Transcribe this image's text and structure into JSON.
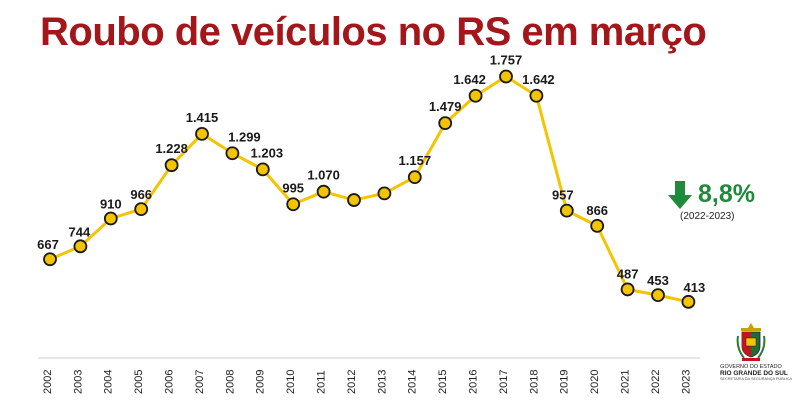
{
  "title": "Roubo de veículos no RS em março",
  "callout": {
    "value": "8,8%",
    "period": "(2022-2023)",
    "direction": "down",
    "color": "#1f8a3b"
  },
  "logo": {
    "line1": "GOVERNO DO ESTADO",
    "line2": "RIO GRANDE DO SUL",
    "line3": "SECRETARIA DA SEGURANÇA PÚBLICA"
  },
  "colors": {
    "title": "#a3171b",
    "line": "#f5c400",
    "marker_fill": "#f5c400",
    "marker_stroke": "#1a1a1a"
  },
  "chart_data": {
    "type": "line",
    "title": "Roubo de veículos no RS em março",
    "xlabel": "",
    "ylabel": "",
    "x": [
      "2002",
      "2003",
      "2004",
      "2005",
      "2006",
      "2007",
      "2008",
      "2009",
      "2010",
      "2011",
      "2012",
      "2013",
      "2014",
      "2015",
      "2016",
      "2017",
      "2018",
      "2019",
      "2020",
      "2021",
      "2022",
      "2023"
    ],
    "values": [
      667,
      744,
      910,
      966,
      1228,
      1415,
      1299,
      1203,
      995,
      1070,
      1020,
      1060,
      1157,
      1479,
      1642,
      1757,
      1642,
      957,
      866,
      487,
      453,
      413
    ],
    "labels": [
      "667",
      "744",
      "910",
      "966",
      "1.228",
      "1.415",
      "1.299",
      "1.203",
      "995",
      "1.070",
      "",
      "",
      "1.157",
      "1.479",
      "1.642",
      "1.757",
      "1.642",
      "957",
      "866",
      "487",
      "453",
      "413"
    ],
    "ylim": [
      400,
      1760
    ],
    "grid": false,
    "legend": "none"
  }
}
